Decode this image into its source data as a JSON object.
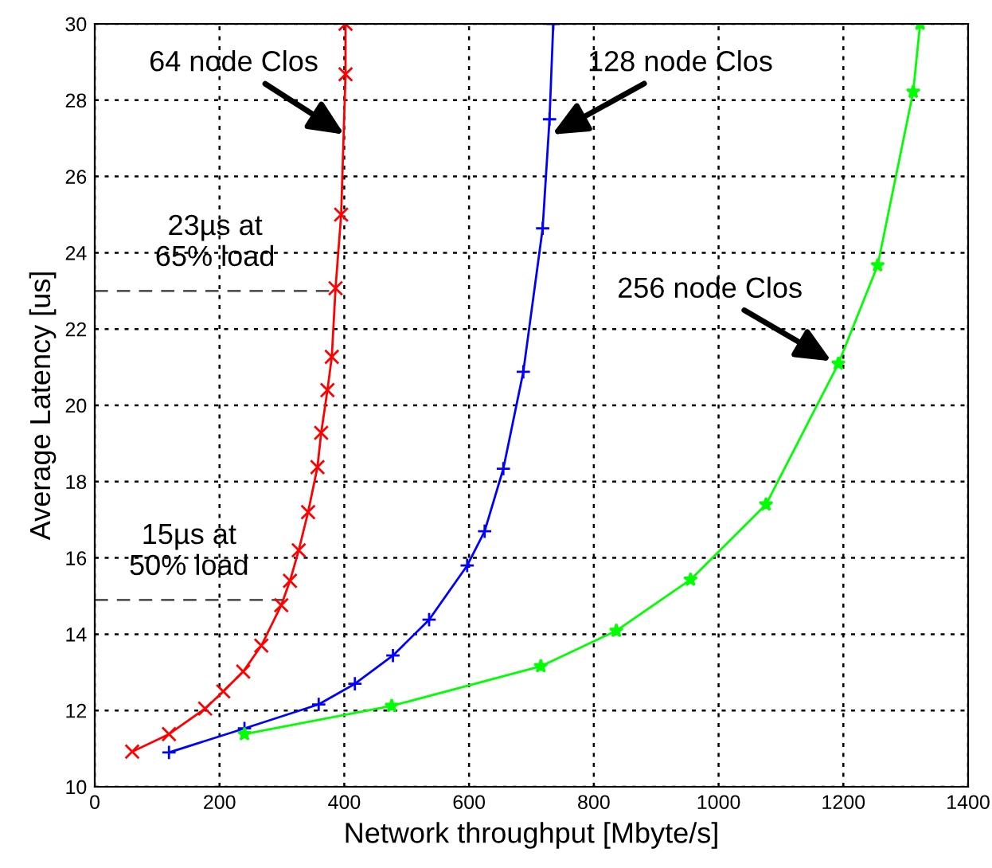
{
  "chart_data": {
    "type": "line",
    "xlabel": "Network throughput [Mbyte/s]",
    "ylabel": "Average Latency [us]",
    "xlim": [
      0,
      1400
    ],
    "xticks": [
      0,
      200,
      400,
      600,
      800,
      1000,
      1200,
      1400
    ],
    "ylim": [
      10,
      30
    ],
    "yticks": [
      10,
      12,
      14,
      16,
      18,
      20,
      22,
      24,
      26,
      28,
      30
    ],
    "grid": true,
    "legend": false,
    "series": [
      {
        "color": "#ff0000",
        "marker": "cross",
        "x": [
          60,
          119,
          177,
          206,
          238,
          267,
          299,
          313,
          327,
          342,
          357,
          363,
          373,
          380,
          386,
          395,
          402,
          402
        ],
        "values": [
          10.92,
          11.38,
          12.05,
          12.5,
          13.02,
          13.7,
          14.76,
          15.4,
          16.2,
          17.2,
          18.38,
          19.28,
          20.4,
          21.27,
          23.07,
          25.0,
          28.68,
          30
        ]
      },
      {
        "color": "#0000ff",
        "marker": "plus",
        "x": [
          119,
          240,
          359,
          417,
          478,
          536,
          597,
          625,
          655,
          687,
          718,
          729,
          735
        ],
        "values": [
          10.9,
          11.53,
          12.16,
          12.7,
          13.44,
          14.38,
          15.8,
          16.7,
          18.34,
          20.88,
          24.64,
          27.5,
          30
        ]
      },
      {
        "color": "#00ff00",
        "marker": "star",
        "x": [
          240,
          476,
          715,
          836,
          955,
          1076,
          1192,
          1255,
          1312,
          1323
        ],
        "values": [
          11.38,
          12.12,
          13.16,
          14.09,
          15.43,
          17.4,
          21.09,
          23.67,
          28.22,
          30
        ]
      }
    ],
    "ref_lines": [
      {
        "axis": "y",
        "value": 23,
        "label": "23µs at\n65% load",
        "line_style": "dashed",
        "color": "#555555"
      },
      {
        "axis": "y",
        "value": 14.9,
        "label": "15µs at\n50% load",
        "line_style": "dashed",
        "color": "#555555"
      }
    ],
    "annotations": [
      {
        "text": "64 node Clos",
        "x": 400,
        "y": 27.1
      },
      {
        "text": "128 node Clos",
        "x": 733,
        "y": 27.1
      },
      {
        "text": "256 node Clos",
        "x": 1181,
        "y": 21.16
      }
    ]
  }
}
